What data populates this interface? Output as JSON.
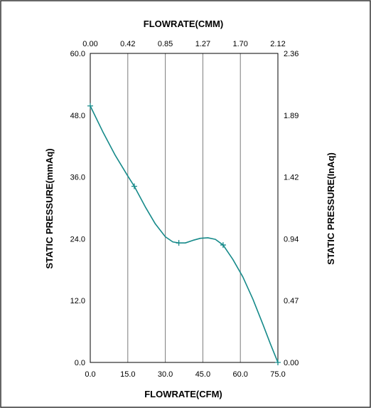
{
  "chart_data": {
    "type": "line",
    "title": "",
    "xlabel": "FLOWRATE(CFM)",
    "ylabel": "STATIC PRESSURE(mmAq)",
    "x2label": "FLOWRATE(CMM)",
    "y2label": "STATIC PRESSURE(InAq)",
    "xlim": [
      0,
      75
    ],
    "ylim": [
      0,
      60
    ],
    "x_ticks": [
      "0.0",
      "15.0",
      "30.0",
      "45.0",
      "60.0",
      "75.0"
    ],
    "y_ticks": [
      "0.0",
      "12.0",
      "24.0",
      "36.0",
      "48.0",
      "60.0"
    ],
    "x2_ticks": [
      "0.00",
      "0.42",
      "0.85",
      "1.27",
      "1.70",
      "2.12"
    ],
    "y2_ticks": [
      "0.00",
      "0.47",
      "0.94",
      "1.42",
      "1.89",
      "2.36"
    ],
    "grid": "vertical",
    "line_color": "#168a8a",
    "series": [
      {
        "points": [
          {
            "x": 0,
            "y": 49.8
          },
          {
            "x": 17.6,
            "y": 34.2
          },
          {
            "x": 35.4,
            "y": 23.2
          },
          {
            "x": 53.1,
            "y": 22.8
          },
          {
            "x": 75.0,
            "y": 0
          }
        ],
        "curve": [
          [
            0,
            49.8
          ],
          [
            5,
            44.8
          ],
          [
            10,
            40.2
          ],
          [
            15,
            36.2
          ],
          [
            17.6,
            34.2
          ],
          [
            22,
            30.2
          ],
          [
            26,
            26.9
          ],
          [
            30,
            24.4
          ],
          [
            33,
            23.4
          ],
          [
            35.4,
            23.2
          ],
          [
            38,
            23.2
          ],
          [
            41,
            23.7
          ],
          [
            44,
            24.1
          ],
          [
            47,
            24.2
          ],
          [
            50,
            23.9
          ],
          [
            53.1,
            22.8
          ],
          [
            57,
            20.0
          ],
          [
            61,
            16.6
          ],
          [
            65,
            12.3
          ],
          [
            69,
            7.4
          ],
          [
            72,
            3.6
          ],
          [
            75,
            0
          ]
        ]
      }
    ]
  }
}
